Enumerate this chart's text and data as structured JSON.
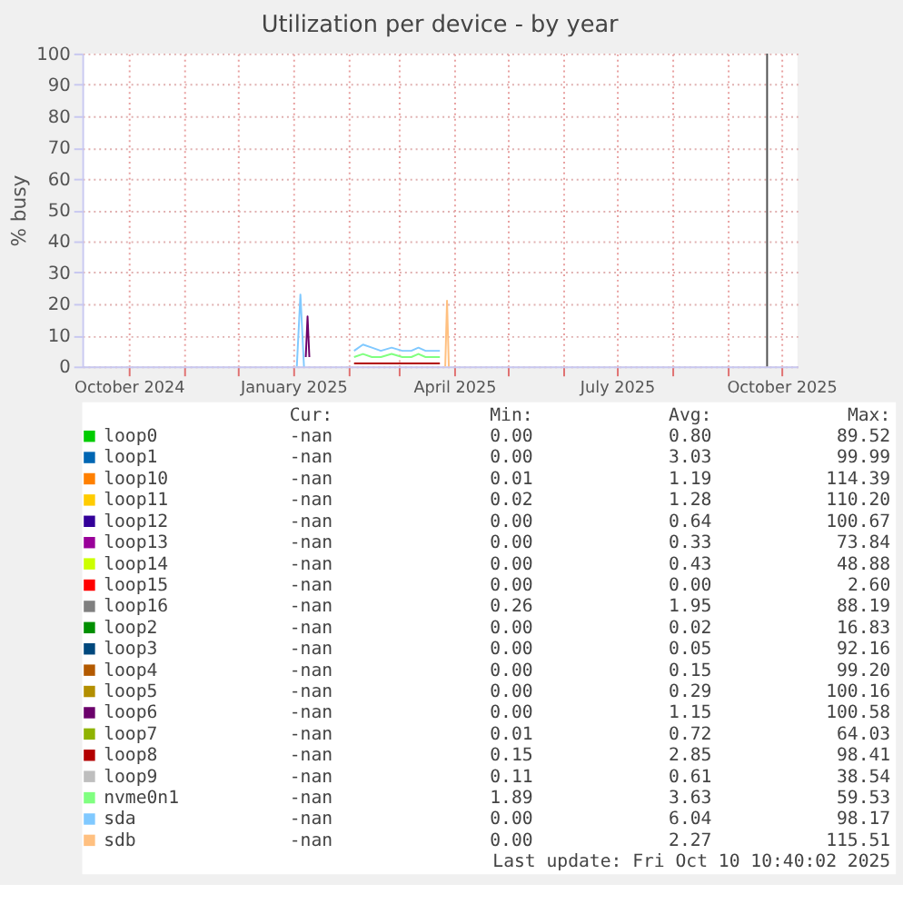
{
  "chart_data": {
    "type": "line",
    "title": "Utilization per device - by year",
    "ylabel": "% busy",
    "x": [
      "2025-02-04",
      "2025-02-09",
      "2025-02-14",
      "2025-02-19",
      "2025-02-25",
      "2025-03-03",
      "2025-03-08",
      "2025-03-12",
      "2025-03-16",
      "2025-03-20",
      "2025-03-24"
    ],
    "xlim": [
      "2024-09-05",
      "2025-10-10"
    ],
    "xticks": [
      {
        "value": "2024-10-01",
        "label": "October 2024"
      },
      {
        "value": "2024-11-01",
        "label": null
      },
      {
        "value": "2024-12-01",
        "label": null
      },
      {
        "value": "2025-01-01",
        "label": "January 2025"
      },
      {
        "value": "2025-02-01",
        "label": null
      },
      {
        "value": "2025-03-01",
        "label": null
      },
      {
        "value": "2025-04-01",
        "label": "April 2025"
      },
      {
        "value": "2025-05-01",
        "label": null
      },
      {
        "value": "2025-06-01",
        "label": null
      },
      {
        "value": "2025-07-01",
        "label": "July 2025"
      },
      {
        "value": "2025-08-01",
        "label": null
      },
      {
        "value": "2025-09-01",
        "label": null
      },
      {
        "value": "2025-10-01",
        "label": "October 2025"
      }
    ],
    "ylim": [
      0,
      100
    ],
    "yticks": [
      0,
      10,
      20,
      30,
      40,
      50,
      60,
      70,
      80,
      90,
      100
    ],
    "grid": true,
    "legend": "bottom",
    "line_style": "solid",
    "marker": "none",
    "ref_lines": [
      {
        "axis": "x",
        "value": "2025-09-23",
        "color": "#505050"
      }
    ],
    "series": [
      {
        "name": "loop0",
        "color": "#00cc00",
        "values": [
          null,
          null,
          null,
          null,
          null,
          null,
          null,
          null,
          null,
          null,
          null
        ]
      },
      {
        "name": "loop1",
        "color": "#0066b3",
        "values": [
          null,
          null,
          null,
          null,
          null,
          null,
          null,
          null,
          null,
          null,
          null
        ]
      },
      {
        "name": "loop10",
        "color": "#ff8000",
        "values": [
          null,
          null,
          null,
          null,
          null,
          null,
          null,
          null,
          null,
          null,
          null
        ]
      },
      {
        "name": "loop11",
        "color": "#ffcc00",
        "values": [
          null,
          null,
          null,
          null,
          null,
          null,
          null,
          null,
          null,
          null,
          null
        ]
      },
      {
        "name": "loop12",
        "color": "#330099",
        "values": [
          null,
          null,
          null,
          null,
          null,
          null,
          null,
          null,
          null,
          null,
          null
        ]
      },
      {
        "name": "loop13",
        "color": "#990099",
        "values": [
          null,
          null,
          null,
          null,
          null,
          null,
          null,
          null,
          null,
          null,
          null
        ]
      },
      {
        "name": "loop14",
        "color": "#ccff00",
        "values": [
          null,
          null,
          null,
          null,
          null,
          null,
          null,
          null,
          null,
          null,
          null
        ]
      },
      {
        "name": "loop15",
        "color": "#ff0000",
        "values": [
          null,
          null,
          null,
          null,
          null,
          null,
          null,
          null,
          null,
          null,
          null
        ]
      },
      {
        "name": "loop16",
        "color": "#808080",
        "values": [
          null,
          null,
          null,
          null,
          null,
          null,
          null,
          null,
          null,
          null,
          null
        ]
      },
      {
        "name": "loop2",
        "color": "#008f00",
        "values": [
          null,
          null,
          null,
          null,
          null,
          null,
          null,
          null,
          null,
          null,
          null
        ]
      },
      {
        "name": "loop3",
        "color": "#00487d",
        "values": [
          null,
          null,
          null,
          null,
          null,
          null,
          null,
          null,
          null,
          null,
          null
        ]
      },
      {
        "name": "loop4",
        "color": "#b35a00",
        "values": [
          null,
          null,
          null,
          null,
          null,
          null,
          null,
          null,
          null,
          null,
          null
        ]
      },
      {
        "name": "loop5",
        "color": "#b38f00",
        "values": [
          null,
          null,
          null,
          null,
          null,
          null,
          null,
          null,
          null,
          null,
          null
        ]
      },
      {
        "name": "loop6",
        "color": "#6b006b",
        "x": [
          "2025-01-08",
          "2025-01-09",
          "2025-01-10"
        ],
        "values": [
          3,
          16,
          3
        ]
      },
      {
        "name": "loop7",
        "color": "#8fb300",
        "values": [
          null,
          null,
          null,
          null,
          null,
          null,
          null,
          null,
          null,
          null,
          null
        ]
      },
      {
        "name": "loop8",
        "color": "#b30000",
        "values": [
          1,
          1,
          1,
          1,
          1,
          1,
          1,
          1,
          1,
          1,
          1
        ]
      },
      {
        "name": "loop9",
        "color": "#bebebe",
        "values": [
          null,
          null,
          null,
          null,
          null,
          null,
          null,
          null,
          null,
          null,
          null
        ]
      },
      {
        "name": "nvme0n1",
        "color": "#80ff80",
        "values": [
          3,
          4,
          3,
          3,
          4,
          3,
          3,
          4,
          3,
          3,
          3
        ]
      },
      {
        "name": "sda",
        "color": "#80c9ff",
        "x": [
          "2025-01-03",
          "2025-01-05",
          "2025-01-07",
          "2025-01-20",
          "2025-02-04",
          "2025-02-09",
          "2025-02-14",
          "2025-02-19",
          "2025-02-25",
          "2025-03-03",
          "2025-03-08",
          "2025-03-12",
          "2025-03-16",
          "2025-03-20",
          "2025-03-24"
        ],
        "values": [
          0,
          23,
          0,
          null,
          5,
          7,
          6,
          5,
          6,
          5,
          5,
          6,
          5,
          5,
          5
        ]
      },
      {
        "name": "sdb",
        "color": "#ffc080",
        "x": [
          "2025-03-27",
          "2025-03-28",
          "2025-03-29"
        ],
        "values": [
          0,
          21,
          0
        ]
      }
    ],
    "annotations": [
      "Cur:",
      "Min:",
      "Avg:",
      "Max:",
      "-nan",
      "0.00",
      "0.80",
      "89.52",
      "-nan",
      "0.00",
      "3.03",
      "99.99",
      "-nan",
      "0.01",
      "1.19",
      "114.39",
      "-nan",
      "0.02",
      "1.28",
      "110.20",
      "-nan",
      "0.00",
      "0.64",
      "100.67",
      "-nan",
      "0.00",
      "0.33",
      "73.84",
      "-nan",
      "0.00",
      "0.43",
      "48.88",
      "-nan",
      "0.00",
      "0.00",
      "2.60",
      "-nan",
      "0.26",
      "1.95",
      "88.19",
      "-nan",
      "0.00",
      "0.02",
      "16.83",
      "-nan",
      "0.00",
      "0.05",
      "92.16",
      "-nan",
      "0.00",
      "0.15",
      "99.20",
      "-nan",
      "0.00",
      "0.29",
      "100.16",
      "-nan",
      "0.00",
      "1.15",
      "100.58",
      "-nan",
      "0.01",
      "0.72",
      "64.03",
      "-nan",
      "0.15",
      "2.85",
      "98.41",
      "-nan",
      "0.11",
      "0.61",
      "38.54",
      "-nan",
      "1.89",
      "3.63",
      "59.53",
      "-nan",
      "0.00",
      "6.04",
      "98.17",
      "-nan",
      "0.00",
      "2.27",
      "115.51",
      "Last update: Fri Oct 10 10:40:02 2025"
    ]
  }
}
